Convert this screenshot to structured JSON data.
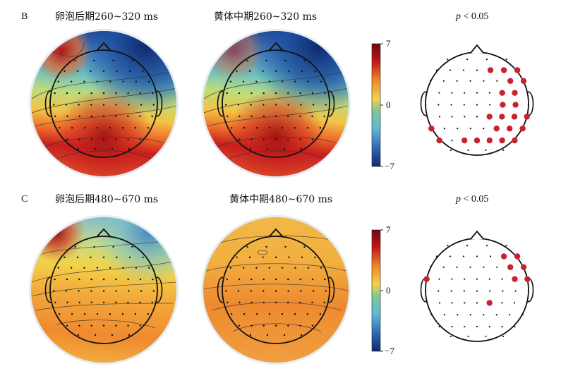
{
  "panel_b": {
    "label": "B",
    "title_left": "卵泡后期260~320 ms",
    "title_mid": "黄体中期260~320 ms",
    "title_right": "< 0.05",
    "p_symbol": "p",
    "colorbar": {
      "max": "7",
      "mid": "0",
      "min": "−7"
    }
  },
  "panel_c": {
    "label": "C",
    "title_left": "卵泡后期480~670 ms",
    "title_mid": "黄体中期480~670 ms",
    "title_right": "< 0.05",
    "p_symbol": "p",
    "colorbar": {
      "max": "7",
      "mid": "0",
      "min": "−7"
    }
  },
  "colors": {
    "red": "#c0141a",
    "dark_red": "#7a0a0a",
    "orange": "#f08a2a",
    "yellow": "#f2d24a",
    "green": "#7ec89a",
    "cyan": "#5fb6d6",
    "blue": "#2b63b0",
    "dark_blue": "#0f2a6e",
    "significant_dot": "#c8232c"
  }
}
